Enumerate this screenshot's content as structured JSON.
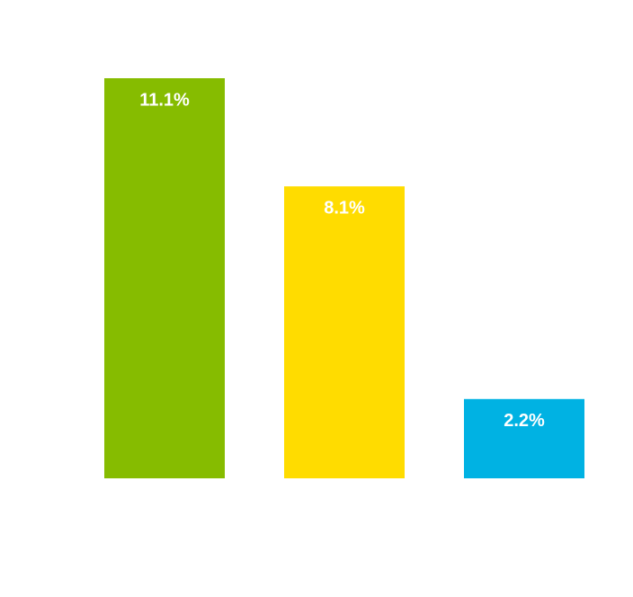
{
  "chart_data": {
    "type": "bar",
    "categories": [
      null,
      null,
      null
    ],
    "values": [
      11.1,
      8.1,
      2.2
    ],
    "value_labels": [
      "11.1%",
      "8.1%",
      "2.2%"
    ],
    "colors": [
      "#86bc00",
      "#ffdc00",
      "#00b2e3"
    ]
  }
}
